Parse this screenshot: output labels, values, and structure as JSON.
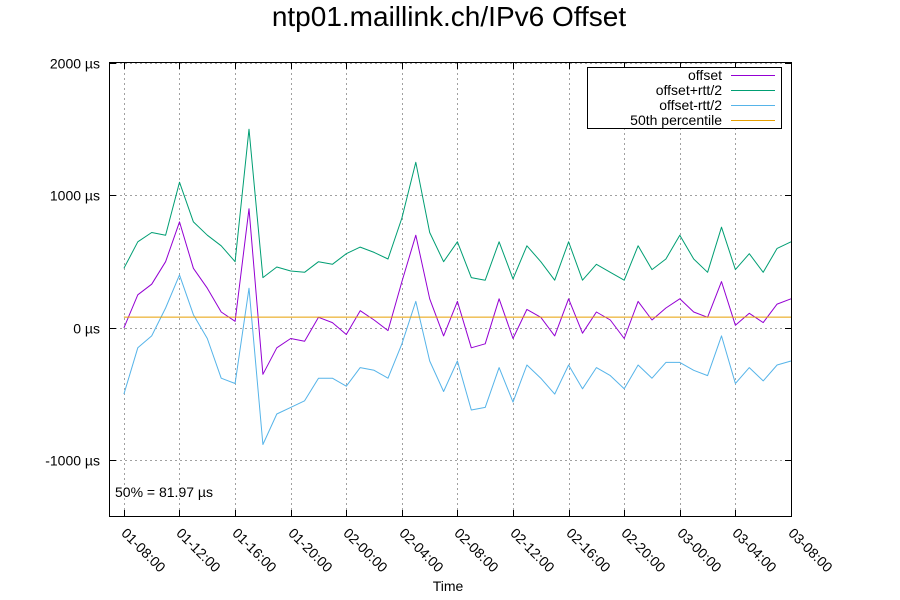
{
  "chart_data": {
    "type": "line",
    "title": "ntp01.maillink.ch/IPv6 Offset",
    "xlabel": "Time",
    "ylabel": "",
    "ylim": [
      -1420,
      2000
    ],
    "xlim": [
      "01-07:00",
      "03-08:00"
    ],
    "y_ticks": [
      {
        "value": 2000,
        "label": "2000 µs"
      },
      {
        "value": 1000,
        "label": "1000 µs"
      },
      {
        "value": 0,
        "label": "0 µs"
      },
      {
        "value": -1000,
        "label": "-1000 µs"
      }
    ],
    "x_ticks": [
      "01-08:00",
      "01-12:00",
      "01-16:00",
      "01-20:00",
      "02-00:00",
      "02-04:00",
      "02-08:00",
      "02-12:00",
      "02-16:00",
      "02-20:00",
      "03-00:00",
      "03-04:00",
      "03-08:00"
    ],
    "grid": true,
    "legend_position": "top-right",
    "annotation": "50% = 81.97 µs",
    "percentile_50": 81.97,
    "series": [
      {
        "name": "offset",
        "color": "#9400d3",
        "x": [
          "01-08:00",
          "01-09:00",
          "01-10:00",
          "01-11:00",
          "01-12:00",
          "01-13:00",
          "01-14:00",
          "01-15:00",
          "01-16:00",
          "01-17:00",
          "01-18:00",
          "01-19:00",
          "01-20:00",
          "01-21:00",
          "01-22:00",
          "01-23:00",
          "02-00:00",
          "02-01:00",
          "02-02:00",
          "02-03:00",
          "02-04:00",
          "02-05:00",
          "02-06:00",
          "02-07:00",
          "02-08:00",
          "02-09:00",
          "02-10:00",
          "02-11:00",
          "02-12:00",
          "02-13:00",
          "02-14:00",
          "02-15:00",
          "02-16:00",
          "02-17:00",
          "02-18:00",
          "02-19:00",
          "02-20:00",
          "02-21:00",
          "02-22:00",
          "02-23:00",
          "03-00:00",
          "03-01:00",
          "03-02:00",
          "03-03:00",
          "03-04:00",
          "03-05:00",
          "03-06:00",
          "03-07:00",
          "03-08:00"
        ],
        "values": [
          0,
          250,
          330,
          500,
          800,
          450,
          300,
          120,
          50,
          900,
          -350,
          -150,
          -80,
          -100,
          80,
          40,
          -50,
          130,
          60,
          -20,
          350,
          700,
          220,
          -60,
          200,
          -150,
          -120,
          220,
          -80,
          140,
          80,
          -60,
          220,
          -40,
          120,
          60,
          -80,
          200,
          60,
          150,
          220,
          120,
          80,
          350,
          20,
          110,
          40,
          180,
          220
        ]
      },
      {
        "name": "offset+rtt/2",
        "color": "#009e73",
        "x": [
          "01-08:00",
          "01-09:00",
          "01-10:00",
          "01-11:00",
          "01-12:00",
          "01-13:00",
          "01-14:00",
          "01-15:00",
          "01-16:00",
          "01-17:00",
          "01-18:00",
          "01-19:00",
          "01-20:00",
          "01-21:00",
          "01-22:00",
          "01-23:00",
          "02-00:00",
          "02-01:00",
          "02-02:00",
          "02-03:00",
          "02-04:00",
          "02-05:00",
          "02-06:00",
          "02-07:00",
          "02-08:00",
          "02-09:00",
          "02-10:00",
          "02-11:00",
          "02-12:00",
          "02-13:00",
          "02-14:00",
          "02-15:00",
          "02-16:00",
          "02-17:00",
          "02-18:00",
          "02-19:00",
          "02-20:00",
          "02-21:00",
          "02-22:00",
          "02-23:00",
          "03-00:00",
          "03-01:00",
          "03-02:00",
          "03-03:00",
          "03-04:00",
          "03-05:00",
          "03-06:00",
          "03-07:00",
          "03-08:00"
        ],
        "values": [
          450,
          650,
          720,
          700,
          1100,
          800,
          700,
          620,
          500,
          1500,
          380,
          460,
          430,
          420,
          500,
          480,
          560,
          610,
          570,
          520,
          830,
          1250,
          720,
          500,
          650,
          380,
          360,
          650,
          370,
          620,
          500,
          360,
          650,
          360,
          480,
          420,
          360,
          620,
          440,
          520,
          700,
          520,
          420,
          760,
          440,
          560,
          420,
          600,
          650
        ]
      },
      {
        "name": "offset-rtt/2",
        "color": "#56b4e9",
        "x": [
          "01-08:00",
          "01-09:00",
          "01-10:00",
          "01-11:00",
          "01-12:00",
          "01-13:00",
          "01-14:00",
          "01-15:00",
          "01-16:00",
          "01-17:00",
          "01-18:00",
          "01-19:00",
          "01-20:00",
          "01-21:00",
          "01-22:00",
          "01-23:00",
          "02-00:00",
          "02-01:00",
          "02-02:00",
          "02-03:00",
          "02-04:00",
          "02-05:00",
          "02-06:00",
          "02-07:00",
          "02-08:00",
          "02-09:00",
          "02-10:00",
          "02-11:00",
          "02-12:00",
          "02-13:00",
          "02-14:00",
          "02-15:00",
          "02-16:00",
          "02-17:00",
          "02-18:00",
          "02-19:00",
          "02-20:00",
          "02-21:00",
          "02-22:00",
          "02-23:00",
          "03-00:00",
          "03-01:00",
          "03-02:00",
          "03-03:00",
          "03-04:00",
          "03-05:00",
          "03-06:00",
          "03-07:00",
          "03-08:00"
        ],
        "values": [
          -500,
          -150,
          -60,
          150,
          400,
          100,
          -80,
          -380,
          -420,
          300,
          -880,
          -650,
          -600,
          -550,
          -380,
          -380,
          -440,
          -300,
          -320,
          -380,
          -120,
          200,
          -250,
          -480,
          -250,
          -620,
          -600,
          -300,
          -560,
          -280,
          -380,
          -500,
          -280,
          -460,
          -300,
          -360,
          -460,
          -280,
          -380,
          -260,
          -260,
          -320,
          -360,
          -60,
          -420,
          -300,
          -400,
          -280,
          -250
        ]
      },
      {
        "name": "50th percentile",
        "color": "#e69f00",
        "x": [
          "01-08:00",
          "03-08:00"
        ],
        "values": [
          81.97,
          81.97
        ]
      }
    ]
  }
}
